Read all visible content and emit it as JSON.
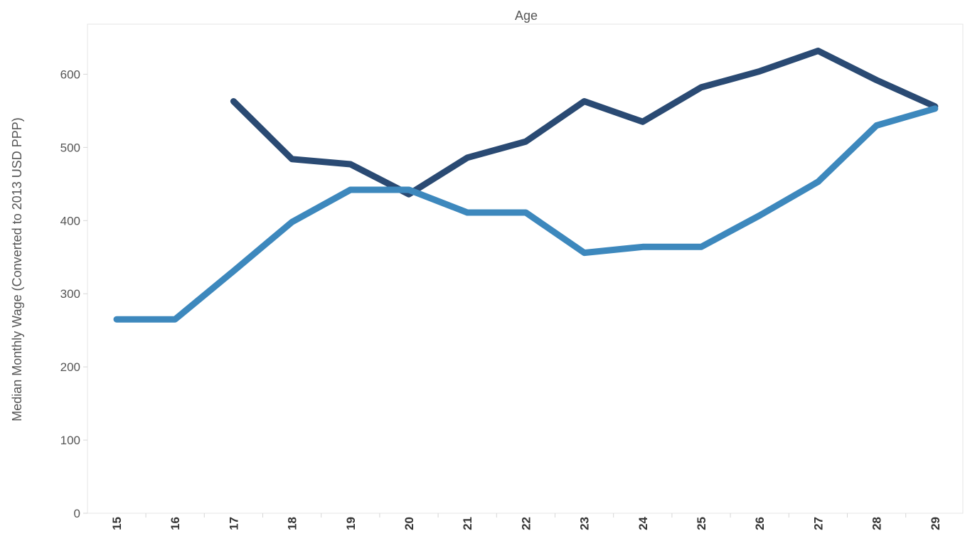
{
  "chart_data": {
    "type": "line",
    "title": "Age",
    "xlabel": "",
    "ylabel": "Median Monthly Wage (Converted to 2013 USD PPP)",
    "x": [
      15,
      16,
      17,
      18,
      19,
      20,
      21,
      22,
      23,
      24,
      25,
      26,
      27,
      28,
      29
    ],
    "categories": [
      "15",
      "16",
      "17",
      "18",
      "19",
      "20",
      "21",
      "22",
      "23",
      "24",
      "25",
      "26",
      "27",
      "28",
      "29"
    ],
    "yticks": [
      0,
      100,
      200,
      300,
      400,
      500,
      600
    ],
    "ylim": [
      0,
      660
    ],
    "grid": false,
    "series": [
      {
        "color": "#2a4a73",
        "values": [
          null,
          null,
          563,
          484,
          477,
          436,
          486,
          508,
          563,
          535,
          582,
          604,
          632,
          592,
          556
        ]
      },
      {
        "color": "#3d88bd",
        "values": [
          265,
          265,
          331,
          398,
          442,
          442,
          411,
          411,
          356,
          364,
          364,
          407,
          453,
          530,
          553
        ]
      }
    ]
  }
}
